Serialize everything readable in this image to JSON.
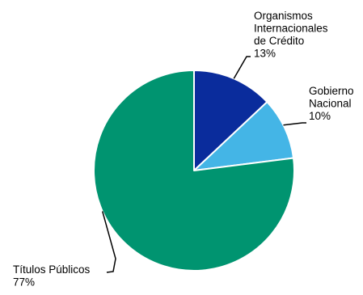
{
  "chart_data": {
    "type": "pie",
    "title": "",
    "start_angle_deg": 0,
    "direction": "clockwise",
    "slices": [
      {
        "label_lines": [
          "Organismos",
          "Internacionales",
          "de Crédito"
        ],
        "pct_label": "13%",
        "value": 13,
        "color": "#0a2c9c"
      },
      {
        "label_lines": [
          "Gobierno",
          "Nacional"
        ],
        "pct_label": "10%",
        "value": 10,
        "color": "#44b5e6"
      },
      {
        "label_lines": [
          "Títulos Públicos"
        ],
        "pct_label": "77%",
        "value": 77,
        "color": "#009470"
      }
    ]
  }
}
